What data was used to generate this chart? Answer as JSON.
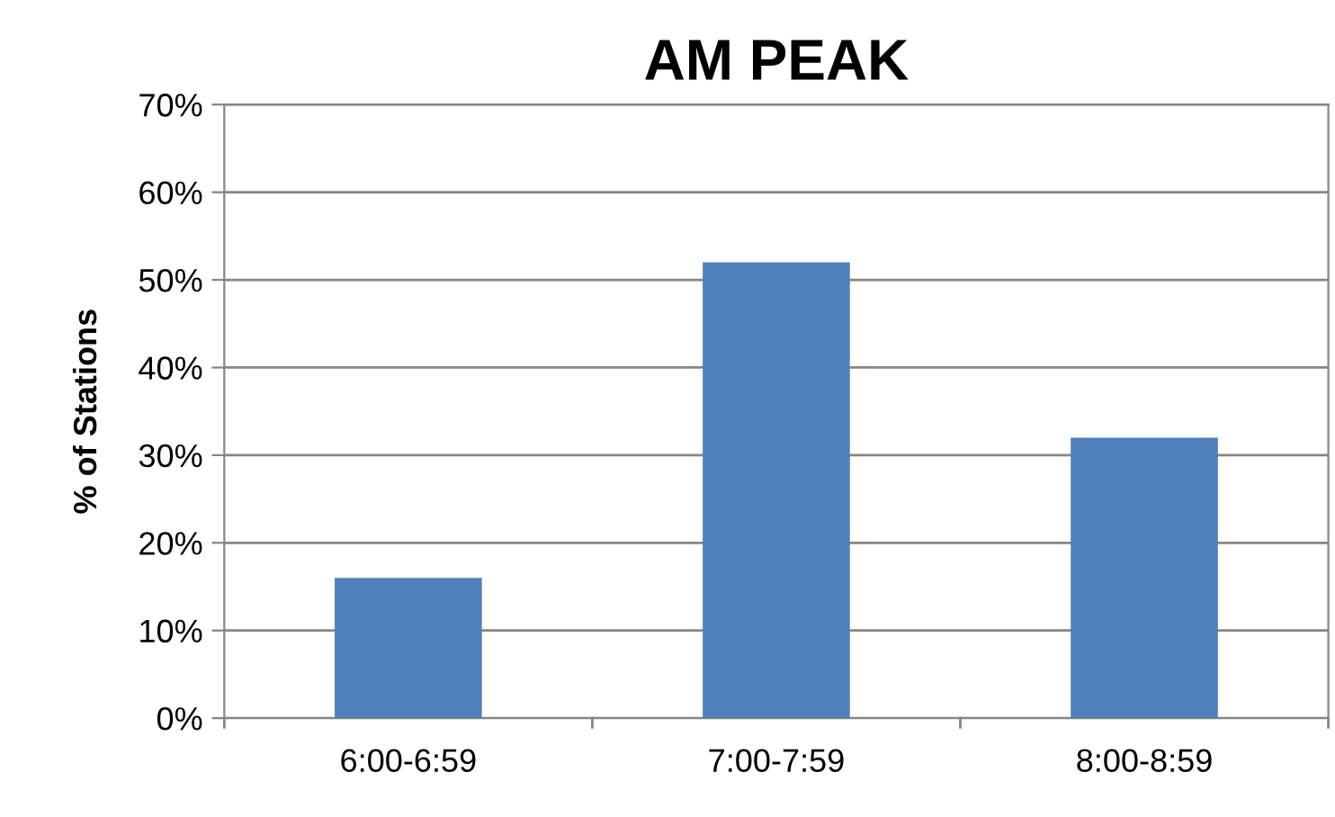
{
  "chart_data": {
    "type": "bar",
    "title": "AM PEAK",
    "ylabel": "% of Stations",
    "categories": [
      "6:00-6:59",
      "7:00-7:59",
      "8:00-8:59"
    ],
    "values": [
      16,
      52,
      32
    ],
    "color": "#4f81bd",
    "ylim": [
      0,
      70
    ],
    "yticks": [
      {
        "value": 0,
        "label": "0%"
      },
      {
        "value": 10,
        "label": "10%"
      },
      {
        "value": 20,
        "label": "20%"
      },
      {
        "value": 30,
        "label": "30%"
      },
      {
        "value": 40,
        "label": "40%"
      },
      {
        "value": 50,
        "label": "50%"
      },
      {
        "value": 60,
        "label": "60%"
      },
      {
        "value": 70,
        "label": "70%"
      }
    ],
    "grid": "y",
    "legend": false
  }
}
